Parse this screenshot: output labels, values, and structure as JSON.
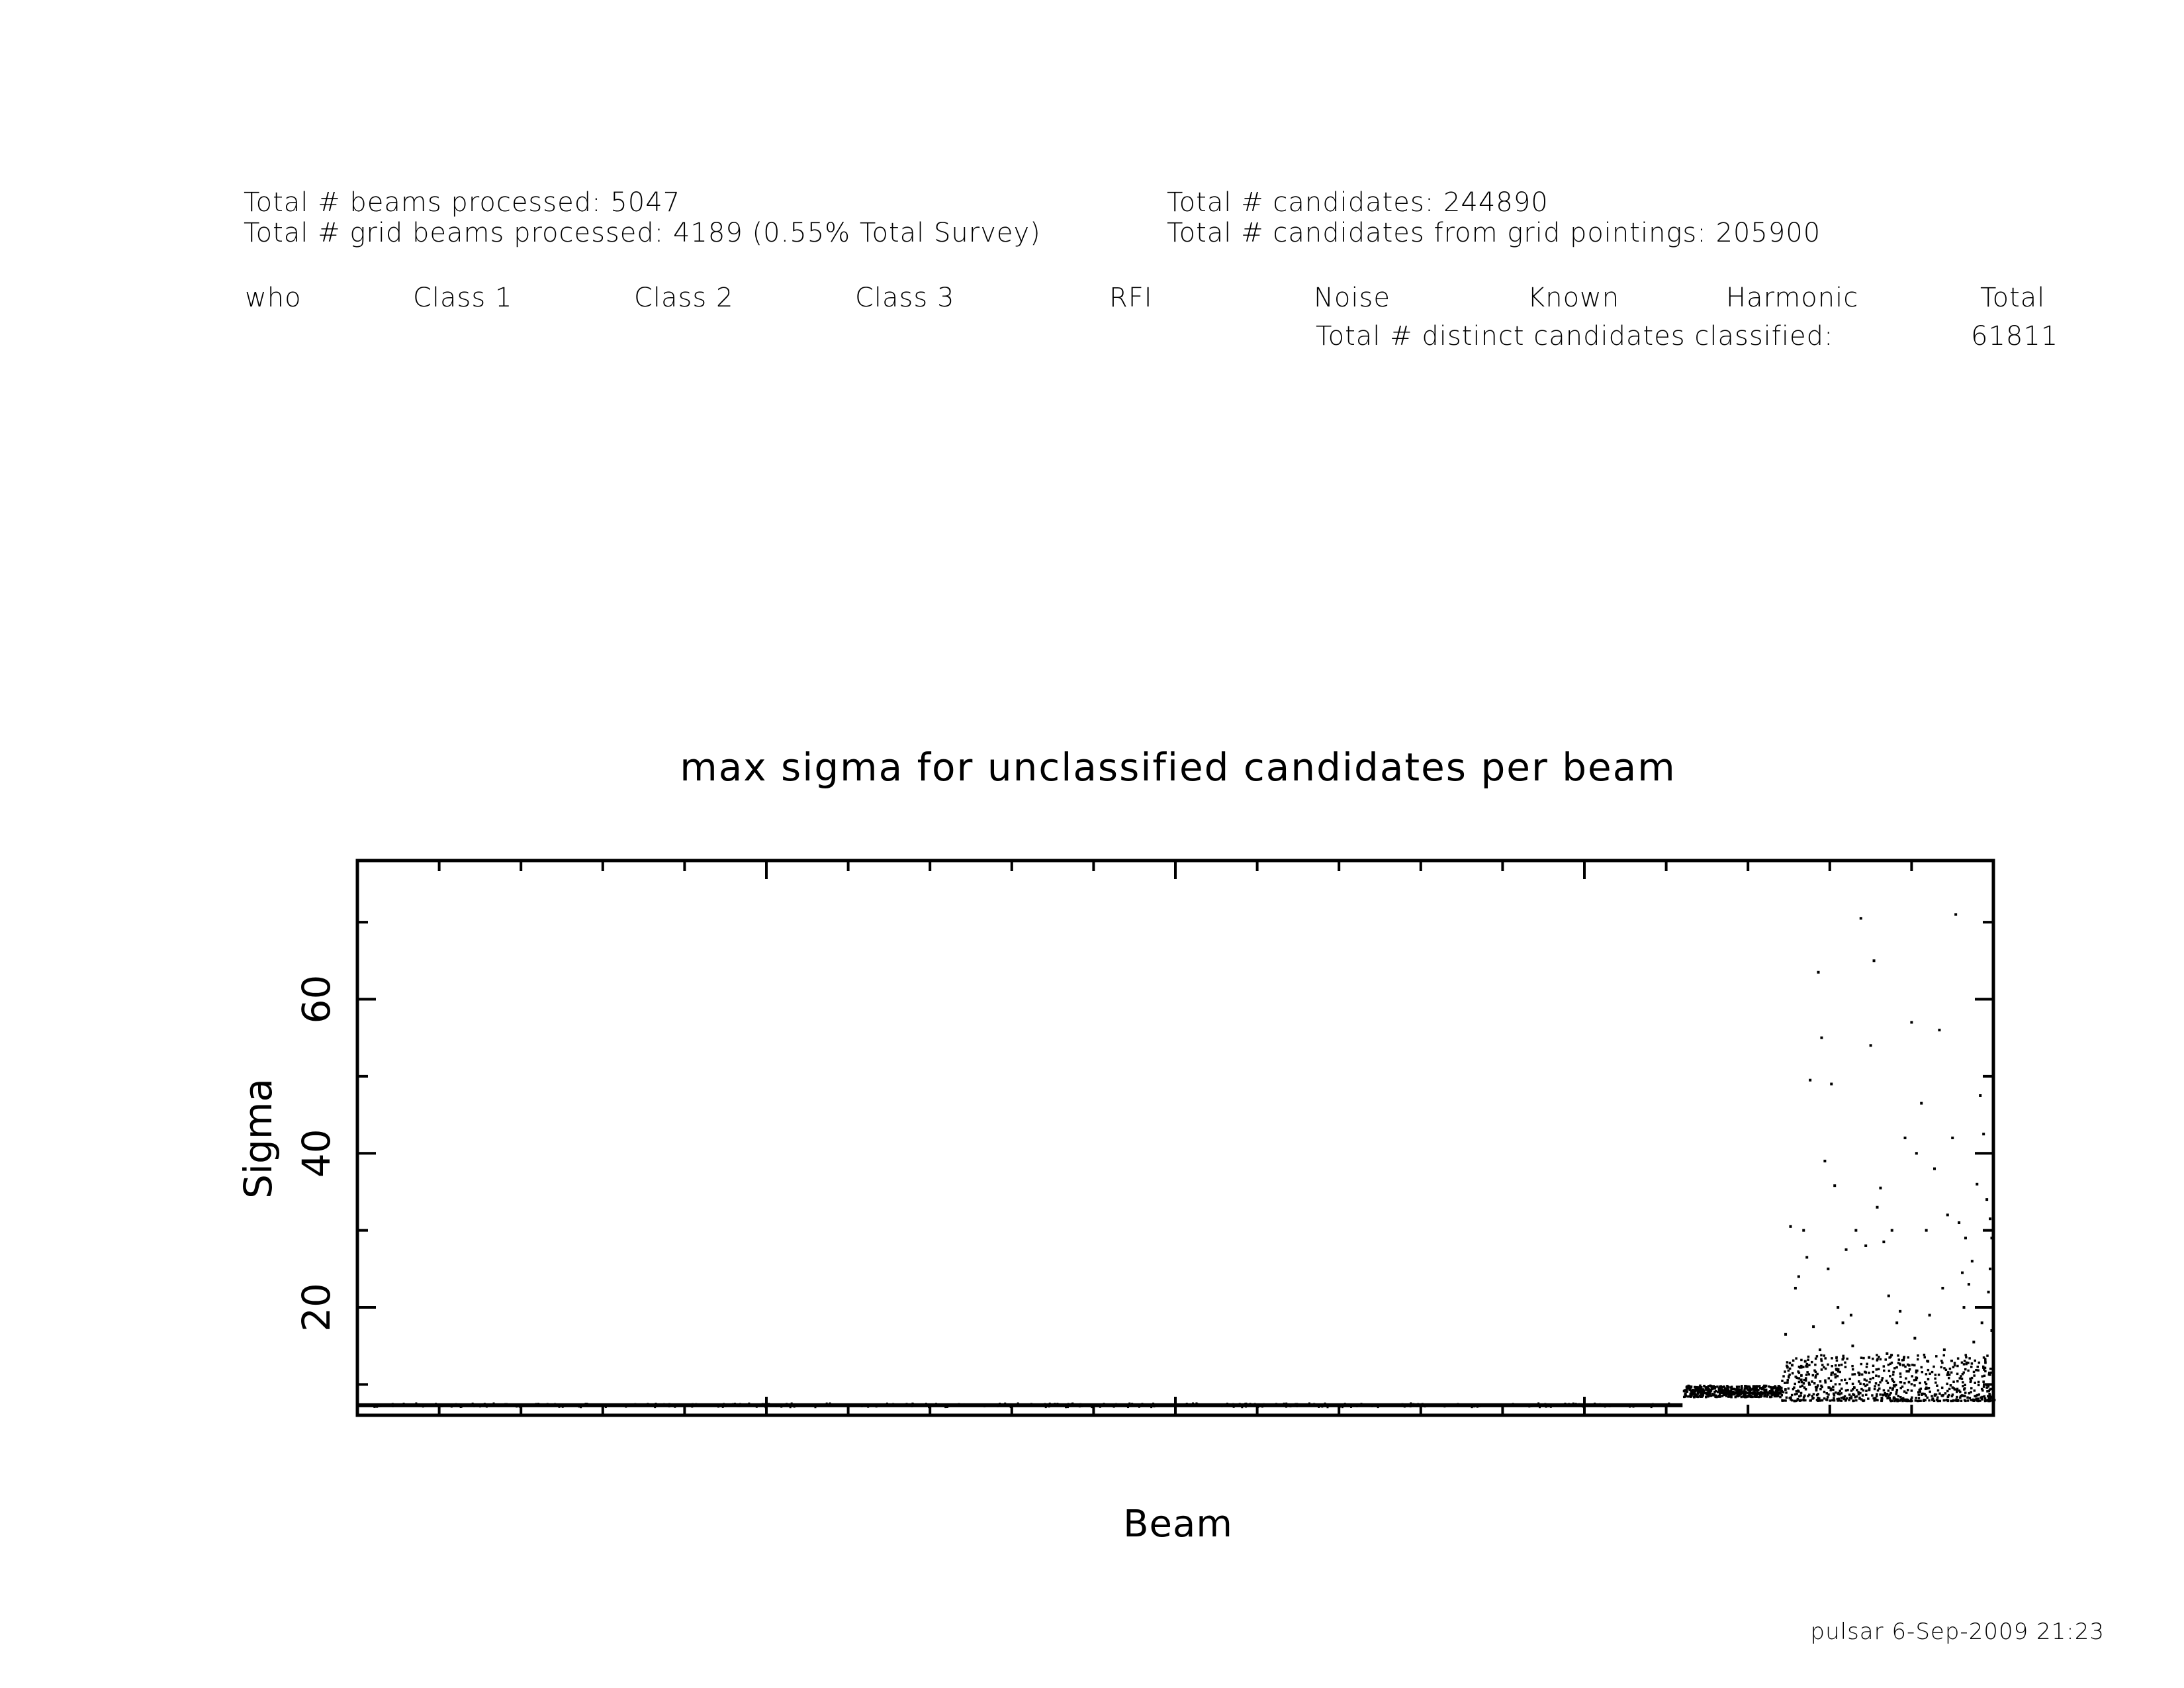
{
  "header": {
    "beams_processed": "Total # beams processed: 5047",
    "grid_beams_processed": "Total # grid beams processed: 4189 (0.55% Total Survey)",
    "candidates": "Total # candidates: 244890",
    "grid_candidates": "Total # candidates from grid pointings: 205900",
    "columns": [
      "who",
      "Class 1",
      "Class 2",
      "Class 3",
      "RFI",
      "Noise",
      "Known",
      "Harmonic",
      "Total"
    ],
    "distinct_label": "Total # distinct candidates classified:",
    "distinct_value": "61811"
  },
  "footer": "pulsar  6-Sep-2009 21:23",
  "chart_data": {
    "type": "scatter",
    "title": "max sigma for unclassified candidates per beam",
    "xlabel": "Beam",
    "ylabel": "Sigma",
    "xlim": [
      0,
      1
    ],
    "ylim": [
      6,
      78
    ],
    "y_ticks": [
      20,
      40,
      60
    ],
    "y_minor_step": 10,
    "x_major_ticks": [
      0.25,
      0.5,
      0.75,
      0.975
    ],
    "x_minor_step": 0.05,
    "x_tick_labels_shown": false,
    "grid": false,
    "legend": "none",
    "baseline": {
      "x_range": [
        0.0,
        0.81
      ],
      "sigma": 7.3,
      "note_text": ""
    },
    "band_segment": {
      "x_range": [
        0.81,
        0.87
      ],
      "sigma_range": [
        8.5,
        10
      ]
    },
    "points": [
      [
        0.873,
        16.5
      ],
      [
        0.876,
        30.5
      ],
      [
        0.879,
        22.5
      ],
      [
        0.881,
        24.0
      ],
      [
        0.884,
        30.0
      ],
      [
        0.886,
        26.5
      ],
      [
        0.888,
        49.5
      ],
      [
        0.89,
        17.5
      ],
      [
        0.893,
        63.5
      ],
      [
        0.895,
        55.0
      ],
      [
        0.897,
        39.0
      ],
      [
        0.899,
        25.0
      ],
      [
        0.901,
        49.0
      ],
      [
        0.903,
        35.8
      ],
      [
        0.905,
        20.0
      ],
      [
        0.908,
        18.0
      ],
      [
        0.91,
        27.5
      ],
      [
        0.913,
        19.0
      ],
      [
        0.916,
        30.0
      ],
      [
        0.919,
        70.5
      ],
      [
        0.922,
        28.0
      ],
      [
        0.925,
        54.0
      ],
      [
        0.927,
        65.0
      ],
      [
        0.929,
        33.0
      ],
      [
        0.931,
        35.5
      ],
      [
        0.933,
        28.5
      ],
      [
        0.936,
        21.5
      ],
      [
        0.938,
        30.0
      ],
      [
        0.941,
        18.0
      ],
      [
        0.943,
        19.5
      ],
      [
        0.946,
        42.0
      ],
      [
        0.95,
        57.0
      ],
      [
        0.953,
        40.0
      ],
      [
        0.956,
        46.5
      ],
      [
        0.959,
        30.0
      ],
      [
        0.961,
        19.0
      ],
      [
        0.964,
        38.0
      ],
      [
        0.967,
        56.0
      ],
      [
        0.969,
        22.5
      ],
      [
        0.972,
        32.0
      ],
      [
        0.975,
        42.0
      ],
      [
        0.977,
        71.0
      ],
      [
        0.979,
        31.0
      ],
      [
        0.981,
        24.5
      ],
      [
        0.983,
        29.0
      ],
      [
        0.985,
        23.0
      ],
      [
        0.988,
        15.5
      ],
      [
        0.99,
        36.0
      ],
      [
        0.992,
        47.5
      ],
      [
        0.994,
        42.5
      ],
      [
        0.996,
        34.0
      ],
      [
        0.998,
        31.5
      ],
      [
        0.999,
        29.0
      ],
      [
        0.997,
        22.0
      ],
      [
        0.993,
        18.0
      ],
      [
        0.987,
        26.0
      ],
      [
        0.982,
        20.0
      ],
      [
        0.97,
        14.5
      ],
      [
        0.96,
        13.0
      ],
      [
        0.952,
        16.0
      ],
      [
        0.945,
        12.5
      ],
      [
        0.935,
        14.0
      ],
      [
        0.924,
        13.5
      ],
      [
        0.914,
        15.0
      ],
      [
        0.904,
        12.0
      ],
      [
        0.894,
        14.5
      ],
      [
        0.885,
        13.0
      ],
      [
        0.877,
        12.5
      ],
      [
        0.998,
        25.0
      ],
      [
        0.999,
        17.0
      ]
    ],
    "dense_cloud": {
      "x_range": [
        0.87,
        1.0
      ],
      "sigma_range": [
        8,
        14
      ],
      "count": 700
    }
  }
}
